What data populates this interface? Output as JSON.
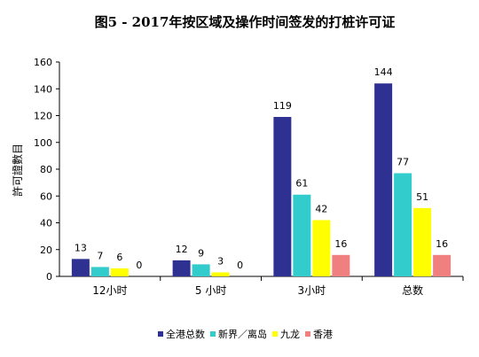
{
  "chart_data": {
    "type": "bar",
    "title": "图5 - 2017年按区域及操作时间签发的打桩许可证",
    "xlabel": "",
    "ylabel": "許可證數目",
    "categories": [
      "12小时",
      "5 小时",
      "3小时",
      "总数"
    ],
    "series": [
      {
        "name": "全港总数",
        "color": "#2E3192",
        "values": [
          13,
          12,
          119,
          144
        ]
      },
      {
        "name": "新界／离岛",
        "color": "#33CCCC",
        "values": [
          7,
          9,
          61,
          77
        ]
      },
      {
        "name": "九龙",
        "color": "#FFFF00",
        "values": [
          6,
          3,
          42,
          51
        ]
      },
      {
        "name": "香港",
        "color": "#F08080",
        "values": [
          0,
          0,
          16,
          16
        ]
      }
    ],
    "ylim": [
      0,
      160
    ],
    "yticks": [
      "0",
      "20",
      "40",
      "60",
      "80",
      "100",
      "120",
      "140",
      "160"
    ],
    "grid": false,
    "legend_position": "bottom"
  }
}
